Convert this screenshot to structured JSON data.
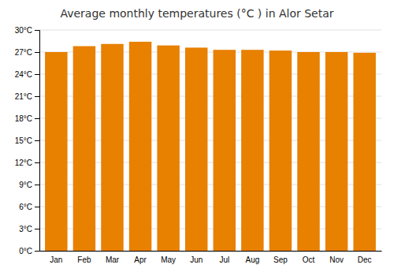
{
  "chart_data": {
    "type": "bar",
    "title": "Average monthly temperatures (°C ) in Alor Setar",
    "categories": [
      "Jan",
      "Feb",
      "Mar",
      "Apr",
      "May",
      "Jun",
      "Jul",
      "Aug",
      "Sep",
      "Oct",
      "Nov",
      "Dec"
    ],
    "values": [
      27.0,
      27.8,
      28.1,
      28.4,
      27.9,
      27.6,
      27.3,
      27.3,
      27.2,
      27.0,
      27.0,
      26.9
    ],
    "color": "#E88000",
    "ylim": [
      0,
      30
    ],
    "yticks": [
      {
        "value": 0,
        "label": "0°C"
      },
      {
        "value": 3,
        "label": "3°C"
      },
      {
        "value": 6,
        "label": "6°C"
      },
      {
        "value": 9,
        "label": "9°C"
      },
      {
        "value": 12,
        "label": "12°C"
      },
      {
        "value": 15,
        "label": "15°C"
      },
      {
        "value": 18,
        "label": "18°C"
      },
      {
        "value": 21,
        "label": "21°C"
      },
      {
        "value": 24,
        "label": "24°C"
      },
      {
        "value": 27,
        "label": "27°C"
      },
      {
        "value": 30,
        "label": "30°C"
      }
    ],
    "grid": true
  }
}
